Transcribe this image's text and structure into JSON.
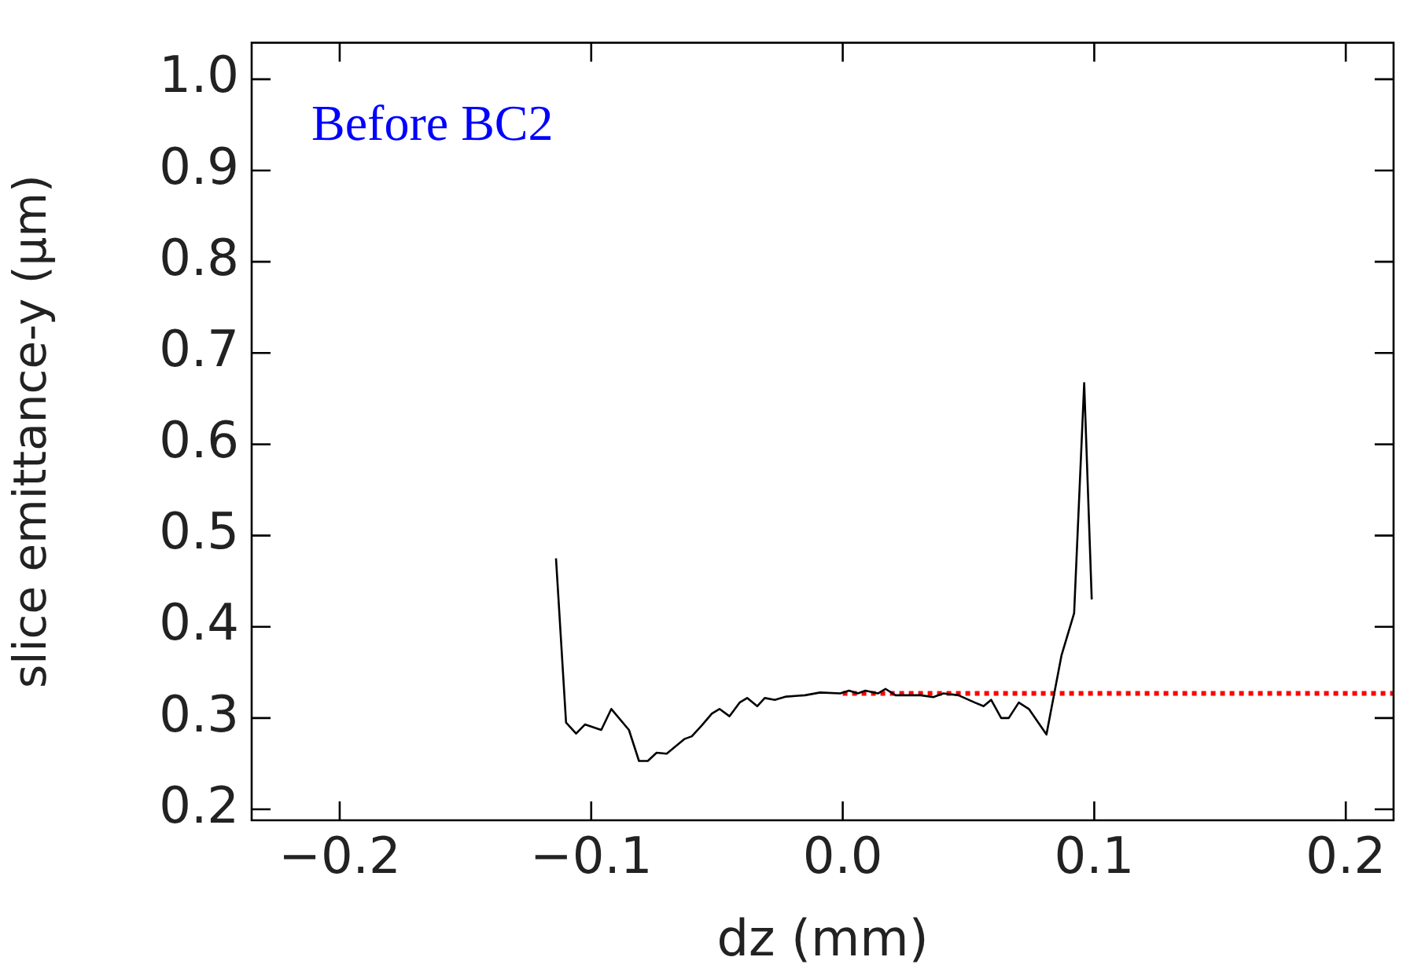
{
  "chart_data": {
    "type": "line",
    "xlabel": "dz (mm)",
    "ylabel": "slice emittance-y (μm)",
    "annotations": [
      "Before BC2"
    ],
    "xlim": [
      -0.235,
      0.219
    ],
    "xticks": [
      -0.2,
      -0.1,
      {
        "value": 0,
        "label": "0.0"
      },
      0.1,
      0.2
    ],
    "ylim": [
      0.188,
      1.04
    ],
    "yticks": [
      0.2,
      0.3,
      0.4,
      0.5,
      0.6,
      0.7,
      0.8,
      0.9,
      {
        "value": 1,
        "label": "1.0"
      }
    ],
    "grid": false,
    "legend": false,
    "marker": "none",
    "series": [
      {
        "color": "#000000",
        "line_style": "solid",
        "x": [
          -0.114,
          -0.11,
          -0.106,
          -0.1025,
          -0.096,
          -0.092,
          -0.085,
          -0.081,
          -0.0775,
          -0.074,
          -0.07,
          -0.063,
          -0.06,
          -0.056,
          -0.052,
          -0.049,
          -0.045,
          -0.041,
          -0.038,
          -0.034,
          -0.031,
          -0.027,
          -0.0225,
          -0.015,
          -0.009,
          -0.001,
          0.0025,
          0.006,
          0.009,
          0.014,
          0.017,
          0.021,
          0.031,
          0.036,
          0.04,
          0.046,
          0.0525,
          0.056,
          0.059,
          0.063,
          0.066,
          0.07,
          0.074,
          0.081,
          0.087,
          0.092,
          0.096,
          0.099
        ],
        "values": [
          0.475,
          0.295,
          0.283,
          0.293,
          0.287,
          0.31,
          0.287,
          0.253,
          0.253,
          0.262,
          0.261,
          0.277,
          0.28,
          0.292,
          0.305,
          0.31,
          0.302,
          0.317,
          0.322,
          0.313,
          0.322,
          0.32,
          0.3235,
          0.325,
          0.328,
          0.327,
          0.33,
          0.327,
          0.33,
          0.327,
          0.332,
          0.325,
          0.325,
          0.323,
          0.327,
          0.325,
          0.317,
          0.313,
          0.32,
          0.3,
          0.3,
          0.317,
          0.31,
          0.282,
          0.369,
          0.415,
          0.667,
          0.43
        ]
      },
      {
        "type": "line",
        "color": "#ff0000",
        "line_style": "dotted",
        "x": [
          0,
          0.219
        ],
        "values": [
          0.327,
          0.327
        ]
      }
    ]
  }
}
